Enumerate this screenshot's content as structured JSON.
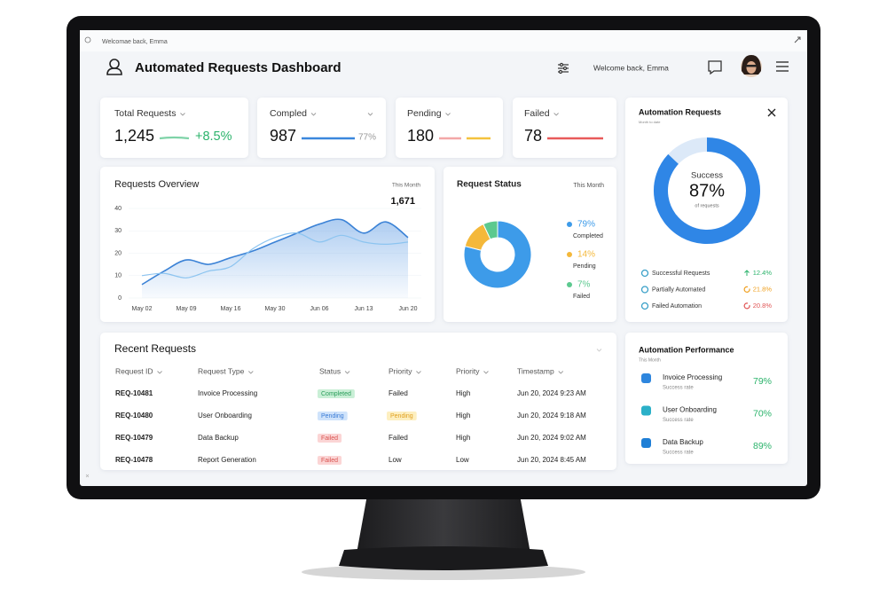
{
  "top_bar": {
    "text": "Welcomae back, Emma"
  },
  "header": {
    "title": "Automated Requests Dashboard",
    "welcome": "Welcome back, Emma"
  },
  "kpis": [
    {
      "label": "Total Requests",
      "value": "1,245",
      "change": "+8.5%"
    },
    {
      "label": "Compled",
      "value": "987",
      "change": "77%"
    },
    {
      "label": "Pending",
      "value": "180"
    },
    {
      "label": "Failed",
      "value": "78"
    }
  ],
  "requests_overview": {
    "type": "line",
    "title": "Requests Overview",
    "period": "This Month",
    "annotation": "1,671",
    "categories": [
      "May 02",
      null,
      "May 09",
      null,
      "May 16",
      null,
      "May 30",
      null,
      "Jun 06",
      null,
      "Jun 13",
      null,
      "Jun 20"
    ],
    "series": [
      {
        "color": "#3b82d6",
        "values": [
          6,
          12,
          17,
          15,
          18,
          21,
          25,
          29,
          33,
          35,
          29,
          34,
          27
        ]
      },
      {
        "color": "#8cc4f0",
        "values": [
          10,
          11,
          9,
          12,
          14,
          22,
          27,
          29,
          25,
          28,
          25,
          24,
          25
        ]
      }
    ],
    "ylim": [
      0,
      40
    ],
    "yticks": [
      0,
      10,
      20,
      30,
      40
    ]
  },
  "request_status": {
    "type": "pie",
    "title": "Request Status",
    "period": "This Month",
    "categories": [
      "Completed",
      "Pending",
      "Failed"
    ],
    "values": [
      79,
      14,
      7
    ],
    "value_labels": [
      "79%",
      "14%",
      "7%"
    ],
    "colors": [
      "#3d9be9",
      "#f4b83a",
      "#5cc98f"
    ]
  },
  "automation_requests": {
    "title": "Automation Requests",
    "subtitle": "Month to date",
    "center_label": "Success",
    "value": 87,
    "value_label": "87%",
    "center_note": "of requests",
    "color": "#2f86e6",
    "items": [
      {
        "label": "Successful Requests",
        "change": "12.4%"
      },
      {
        "label": "Partially Automated",
        "change": "21.8%"
      },
      {
        "label": "Failed Automation",
        "change": "20.8%"
      }
    ]
  },
  "recent_requests": {
    "title": "Recent Requests",
    "columns": [
      "Request ID",
      "Request Type",
      "Status",
      "Priority",
      "Priority",
      "Timestamp"
    ],
    "rows": [
      [
        "REQ-10481",
        "Invoice Processing",
        "Completed",
        "Failed",
        "High",
        "Jun 20, 2024 9:23 AM"
      ],
      [
        "REQ-10480",
        "User Onboarding",
        "Pending",
        "Pending",
        "High",
        "Jun 20, 2024 9:18 AM"
      ],
      [
        "REQ-10479",
        "Data Backup",
        "Failed",
        "Failed",
        "High",
        "Jun 20, 2024 9:02 AM"
      ],
      [
        "REQ-10478",
        "Report Generation",
        "Failed",
        "Low",
        "Low",
        "Jun 20, 2024 8:45 AM"
      ]
    ]
  },
  "automation_performance": {
    "title": "Automation Performance",
    "subtitle": "This Month",
    "items": [
      {
        "name": "Invoice Processing",
        "note": "Success rate",
        "value": "79%"
      },
      {
        "name": "User Onboarding",
        "note": "Success rate",
        "value": "70%"
      },
      {
        "name": "Data Backup",
        "note": "Success rate",
        "value": "89%"
      }
    ]
  }
}
